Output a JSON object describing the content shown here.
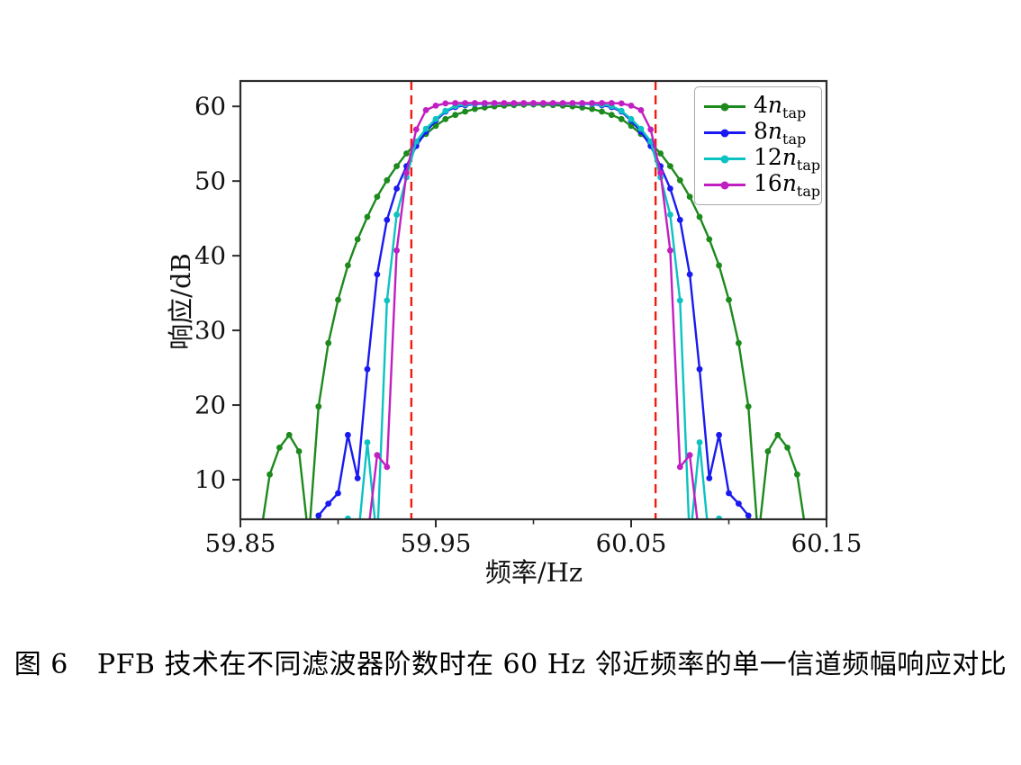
{
  "figure": {
    "caption": {
      "prefix": "图 6",
      "text": "PFB 技术在不同滤波器阶数时在 60 Hz 邻近频率的单一信道频幅响应对比"
    }
  },
  "chart_data": {
    "type": "line",
    "title": "",
    "xlabel": "频率/Hz",
    "ylabel": "响应/dB",
    "xlim": [
      59.85,
      60.15
    ],
    "ylim": [
      4.7,
      63.4
    ],
    "grid": false,
    "x_major_ticks": [
      59.85,
      59.95,
      60.05,
      60.15
    ],
    "x_major_tick_labels": [
      "59.85",
      "59.95",
      "60.05",
      "60.15"
    ],
    "x_minor_ticks": [
      59.9,
      60.0,
      60.1
    ],
    "y_ticks": [
      10,
      20,
      30,
      40,
      50,
      60
    ],
    "y_tick_labels": [
      "10",
      "20",
      "30",
      "40",
      "50",
      "60"
    ],
    "legend_position": "upper right",
    "reference_lines": {
      "style": "dashed",
      "color": "#ee1c11",
      "x_values": [
        59.9375,
        60.0625
      ]
    },
    "x_start": 59.85,
    "x_step": 0.005,
    "frame_color": "#2b2b2b",
    "series": [
      {
        "label": "4n_tap",
        "label_parts": {
          "coef": "4",
          "var": "n",
          "sub": "tap"
        },
        "color": "#1d8a1d",
        "values": [
          null,
          null,
          2,
          10.7,
          14.3,
          16,
          13.8,
          2,
          19.8,
          28.3,
          34.1,
          38.7,
          42.2,
          45.2,
          47.9,
          50.1,
          52,
          53.7,
          55.1,
          56.3,
          57.4,
          58.3,
          58.85,
          59.3,
          59.65,
          59.85,
          60,
          60.1,
          60.18,
          60.22,
          60.25,
          60.22,
          60.18,
          60.1,
          60,
          59.85,
          59.65,
          59.3,
          58.85,
          58.3,
          57.4,
          56.3,
          55.1,
          53.7,
          52,
          50.1,
          47.9,
          45.2,
          42.2,
          38.7,
          34.1,
          28.3,
          19.8,
          2,
          13.8,
          16,
          14.3,
          10.7,
          2,
          null,
          null
        ]
      },
      {
        "label": "8n_tap",
        "label_parts": {
          "coef": "8",
          "var": "n",
          "sub": "tap"
        },
        "color": "#1a1af0",
        "values": [
          null,
          null,
          null,
          null,
          null,
          null,
          null,
          2,
          5.2,
          6.8,
          8.2,
          16,
          10.2,
          24.8,
          37.5,
          44.8,
          49,
          52,
          54.7,
          56.6,
          58.1,
          59.3,
          59.9,
          60.15,
          60.3,
          60.35,
          60.4,
          60.4,
          60.4,
          60.4,
          60.4,
          60.4,
          60.4,
          60.4,
          60.4,
          60.35,
          60.3,
          60.15,
          59.9,
          59.3,
          58.1,
          56.6,
          54.7,
          52,
          49,
          44.8,
          37.5,
          24.8,
          10.2,
          16,
          8.2,
          6.8,
          5.2,
          2,
          null,
          null,
          null,
          null,
          null,
          null,
          null
        ]
      },
      {
        "label": "12n_tap",
        "label_parts": {
          "coef": "12",
          "var": "n",
          "sub": "tap"
        },
        "color": "#0cc2c2",
        "values": [
          null,
          null,
          null,
          null,
          null,
          null,
          null,
          null,
          null,
          null,
          null,
          4.8,
          1.5,
          15,
          1.5,
          34,
          45.5,
          50.5,
          55.3,
          57,
          58.3,
          59.4,
          60.05,
          60.25,
          60.35,
          60.4,
          60.4,
          60.4,
          60.4,
          60.4,
          60.4,
          60.4,
          60.4,
          60.4,
          60.4,
          60.4,
          60.35,
          60.25,
          60.05,
          59.4,
          58.3,
          57,
          55.3,
          50.5,
          45.5,
          34,
          1.5,
          15,
          1.5,
          4.8,
          null,
          null,
          null,
          null,
          null,
          null,
          null,
          null,
          null,
          null,
          null
        ]
      },
      {
        "label": "16n_tap",
        "label_parts": {
          "coef": "16",
          "var": "n",
          "sub": "tap"
        },
        "color": "#c11fc1",
        "values": [
          null,
          null,
          null,
          null,
          null,
          null,
          null,
          null,
          null,
          null,
          null,
          null,
          null,
          2,
          13.3,
          11.7,
          40.7,
          51.1,
          56.9,
          59.5,
          60.1,
          60.4,
          60.45,
          60.45,
          60.45,
          60.45,
          60.45,
          60.45,
          60.45,
          60.45,
          60.45,
          60.45,
          60.45,
          60.45,
          60.45,
          60.45,
          60.45,
          60.45,
          60.45,
          60.4,
          60.1,
          59.5,
          56.9,
          51.1,
          40.7,
          11.7,
          13.3,
          2,
          null,
          null,
          null,
          null,
          null,
          null,
          null,
          null,
          null,
          null,
          null,
          null,
          null
        ]
      }
    ]
  }
}
